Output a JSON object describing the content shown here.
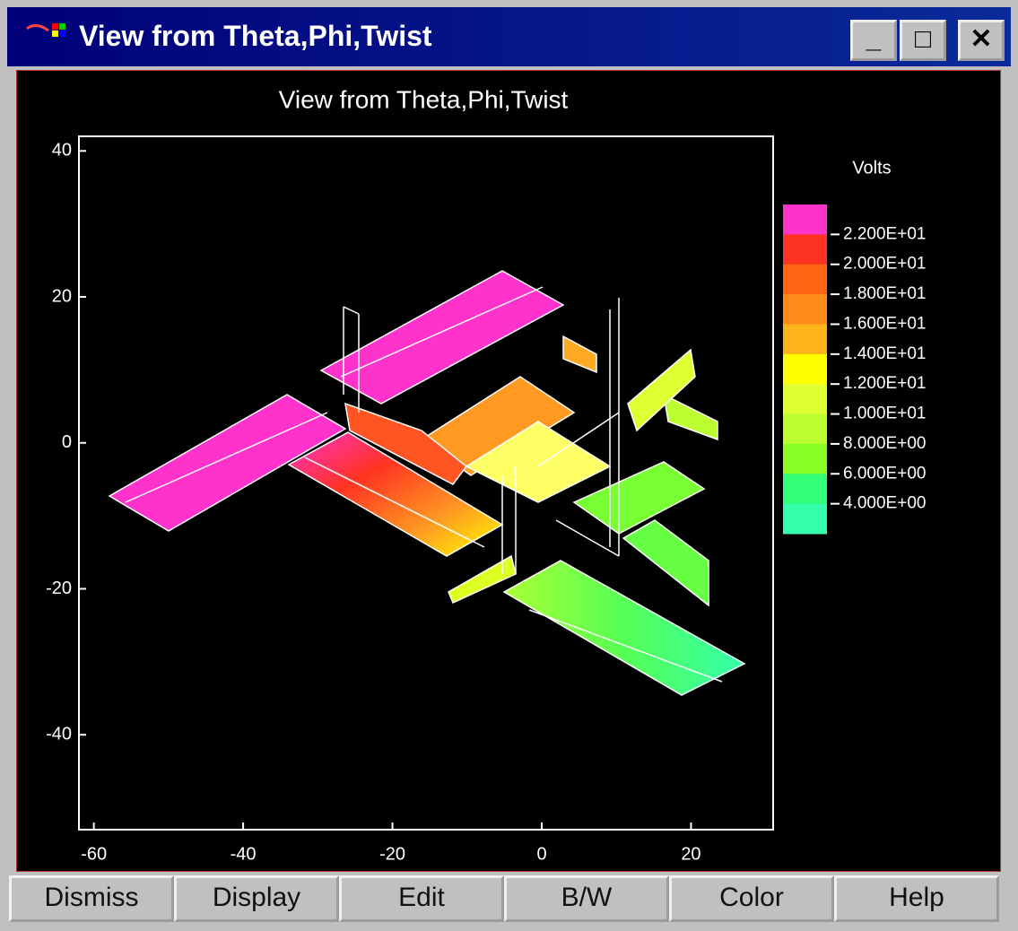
{
  "window": {
    "title": "View from Theta,Phi,Twist"
  },
  "plot": {
    "title": "View from Theta,Phi,Twist",
    "xlim": [
      -62,
      31
    ],
    "ylim": [
      -53,
      42
    ],
    "xticks": [
      -60,
      -40,
      -20,
      0,
      20
    ],
    "yticks": [
      40,
      20,
      0,
      -20,
      -40
    ],
    "colorbar": {
      "label": "Volts",
      "colors": [
        "#ff33cc",
        "#ff3322",
        "#ff6611",
        "#ff8c1a",
        "#ffb31a",
        "#ffff00",
        "#ddff33",
        "#bbff33",
        "#88ff22",
        "#33ff77",
        "#33ffaa"
      ],
      "ticks": [
        {
          "value": 22,
          "label": "2.200E+01"
        },
        {
          "value": 20,
          "label": "2.000E+01"
        },
        {
          "value": 18,
          "label": "1.800E+01"
        },
        {
          "value": 16,
          "label": "1.600E+01"
        },
        {
          "value": 14,
          "label": "1.400E+01"
        },
        {
          "value": 12,
          "label": "1.200E+01"
        },
        {
          "value": 10,
          "label": "1.000E+01"
        },
        {
          "value": 8,
          "label": "8.000E+00"
        },
        {
          "value": 6,
          "label": "6.000E+00"
        },
        {
          "value": 4,
          "label": "4.000E+00"
        }
      ]
    }
  },
  "buttons": [
    "Dismiss",
    "Display",
    "Edit",
    "B/W",
    "Color",
    "Help"
  ]
}
